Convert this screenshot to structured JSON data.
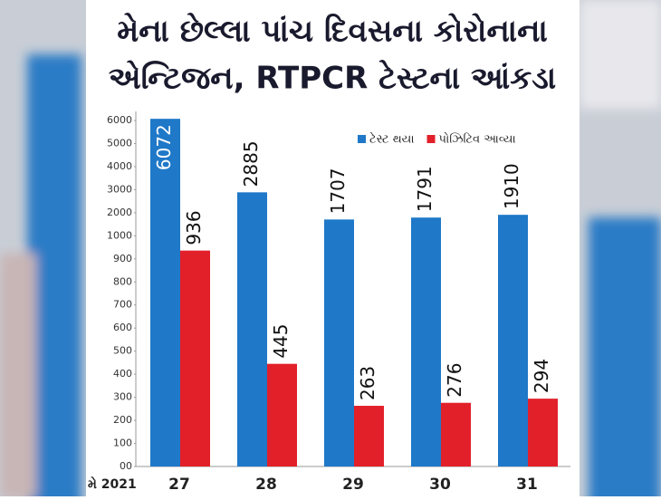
{
  "chart_data": {
    "type": "bar",
    "title": [
      "મેના છેલ્લા પાંચ દિવસના કોરોનાના",
      "એન્ટિજન, RTPCR ટેસ્ટના આંકડા"
    ],
    "x_prefix": "મે 2021",
    "categories": [
      "27",
      "28",
      "29",
      "30",
      "31"
    ],
    "series": [
      {
        "name": "ટેસ્ટ થયા",
        "color": "#1f78c8",
        "values": [
          6072,
          2885,
          1707,
          1791,
          1910
        ]
      },
      {
        "name": "પોઝિટિવ આવ્યા",
        "color": "#e2202a",
        "values": [
          936,
          445,
          263,
          276,
          294
        ]
      }
    ],
    "ylim": [
      0,
      6000
    ],
    "yticks": [
      {
        "value": 0,
        "label": "00"
      },
      100,
      200,
      300,
      400,
      500,
      600,
      700,
      800,
      900,
      1000,
      2000,
      3000,
      4000,
      5000,
      6000
    ],
    "legend": "top-right"
  }
}
